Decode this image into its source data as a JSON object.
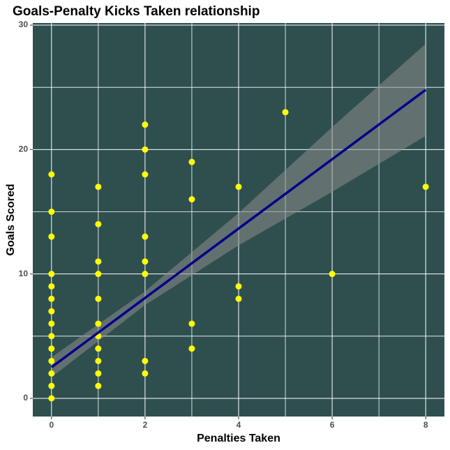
{
  "chart_data": {
    "type": "scatter",
    "title": "Goals-Penalty Kicks Taken relationship",
    "xlabel": "Penalties Taken",
    "ylabel": "Goals Scored",
    "x": [
      0,
      0,
      0,
      0,
      0,
      0,
      0,
      0,
      0,
      0,
      0,
      0,
      0,
      0,
      1,
      1,
      1,
      1,
      1,
      1,
      1,
      1,
      1,
      1,
      1,
      2,
      2,
      2,
      2,
      2,
      2,
      2,
      2,
      3,
      3,
      3,
      3,
      4,
      4,
      4,
      5,
      6,
      8
    ],
    "values": [
      18,
      15,
      13,
      10,
      9,
      8,
      7,
      6,
      5,
      4,
      3,
      2,
      1,
      0,
      17,
      14,
      11,
      10,
      8,
      6,
      5,
      4,
      3,
      2,
      1,
      22,
      20,
      18,
      13,
      11,
      10,
      3,
      2,
      19,
      16,
      6,
      4,
      17,
      9,
      8,
      23,
      10,
      17
    ],
    "color": "#ffff00",
    "fit": {
      "x": [
        0,
        2,
        4,
        6,
        8
      ],
      "y": [
        2.5,
        8.07,
        13.65,
        19.22,
        24.8
      ],
      "lower": [
        1.7,
        7.5,
        12.3,
        16.6,
        21.1
      ],
      "upper": [
        3.3,
        8.6,
        14.9,
        21.8,
        28.5
      ],
      "color": "#00008b",
      "band_color": "#8c8c8c"
    },
    "xlim": [
      -0.4,
      8.4
    ],
    "ylim": [
      -1.46,
      30.17
    ],
    "xticks": [
      0,
      2,
      4,
      6,
      8
    ],
    "yticks": [
      0,
      10,
      20,
      30
    ],
    "minor_xticks": [
      1,
      3,
      5,
      7
    ],
    "minor_yticks": [
      5,
      15,
      25
    ],
    "grid": true,
    "panel_color": "#2f4f4f"
  }
}
